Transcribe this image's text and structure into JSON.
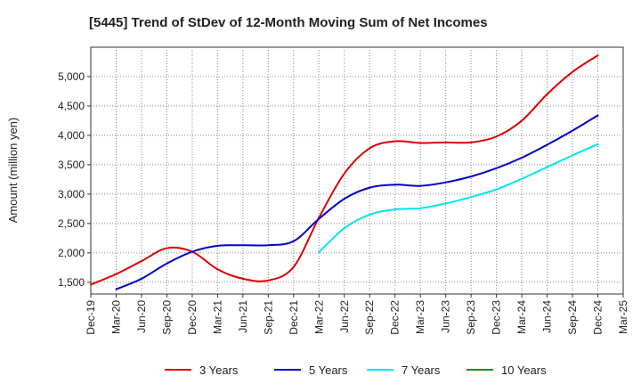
{
  "chart_data": {
    "type": "line",
    "title": "[5445]  Trend of StDev of 12-Month Moving Sum of Net Incomes",
    "xlabel": "",
    "ylabel": "Amount (million yen)",
    "categories": [
      "Dec-19",
      "Mar-20",
      "Jun-20",
      "Sep-20",
      "Dec-20",
      "Mar-21",
      "Jun-21",
      "Sep-21",
      "Dec-21",
      "Mar-22",
      "Jun-22",
      "Sep-22",
      "Dec-22",
      "Mar-23",
      "Jun-23",
      "Sep-23",
      "Dec-23",
      "Mar-24",
      "Jun-24",
      "Sep-24",
      "Dec-24",
      "Mar-25"
    ],
    "ylim": [
      1300,
      5500
    ],
    "yticks": [
      1500,
      2000,
      2500,
      3000,
      3500,
      4000,
      4500,
      5000
    ],
    "ytick_labels": [
      "1,500",
      "2,000",
      "2,500",
      "3,000",
      "3,500",
      "4,000",
      "4,500",
      "5,000"
    ],
    "grid": true,
    "legend_position": "bottom",
    "series": [
      {
        "name": "3 Years",
        "color": "#dd0000",
        "values": [
          1460,
          1640,
          1860,
          2080,
          2020,
          1720,
          1560,
          1530,
          1760,
          2600,
          3350,
          3780,
          3900,
          3870,
          3880,
          3880,
          3980,
          4250,
          4700,
          5080,
          5360,
          null
        ]
      },
      {
        "name": "5 Years",
        "color": "#0000cc",
        "values": [
          null,
          1380,
          1560,
          1820,
          2020,
          2120,
          2130,
          2130,
          2200,
          2580,
          2920,
          3110,
          3160,
          3140,
          3200,
          3300,
          3440,
          3620,
          3840,
          4080,
          4340,
          null
        ]
      },
      {
        "name": "7 Years",
        "color": "#00e5ee",
        "values": [
          null,
          null,
          null,
          null,
          null,
          null,
          null,
          null,
          null,
          2010,
          2420,
          2650,
          2740,
          2760,
          2840,
          2950,
          3080,
          3260,
          3460,
          3660,
          3850,
          null
        ]
      },
      {
        "name": "10 Years",
        "color": "#228b22",
        "values": [
          null,
          null,
          null,
          null,
          null,
          null,
          null,
          null,
          null,
          null,
          null,
          null,
          null,
          null,
          null,
          null,
          null,
          null,
          null,
          null,
          null,
          null
        ]
      }
    ]
  }
}
